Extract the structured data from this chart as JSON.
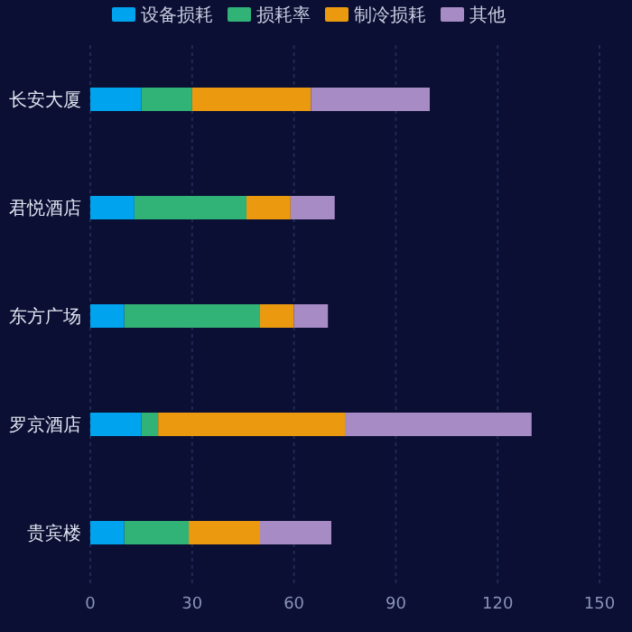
{
  "chart_data": {
    "type": "bar",
    "orientation": "horizontal",
    "stacked": true,
    "categories": [
      "长安大厦",
      "君悦酒店",
      "东方广场",
      "罗京酒店",
      "贵宾楼"
    ],
    "series": [
      {
        "name": "设备损耗",
        "color": "#00a3ee",
        "values": [
          15,
          13,
          10,
          15,
          10
        ]
      },
      {
        "name": "损耗率",
        "color": "#31b276",
        "values": [
          15,
          33,
          40,
          5,
          19
        ]
      },
      {
        "name": "制冷损耗",
        "color": "#eb9a10",
        "values": [
          35,
          13,
          10,
          55,
          21
        ]
      },
      {
        "name": "其他",
        "color": "#a78bc4",
        "values": [
          35,
          13,
          10,
          55,
          21
        ]
      }
    ],
    "xlim": [
      0,
      150
    ],
    "xticks": [
      0,
      30,
      60,
      90,
      120,
      150
    ],
    "grid": "x",
    "legend": "top"
  }
}
